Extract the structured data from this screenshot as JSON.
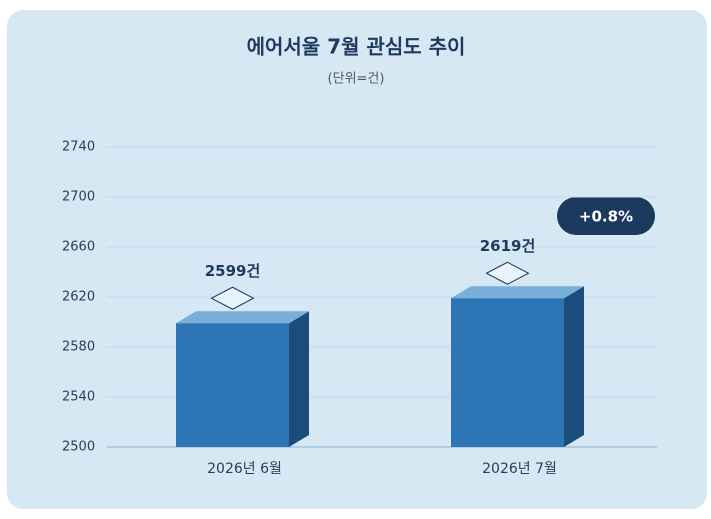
{
  "chart_data": {
    "type": "bar3d",
    "title": "에어서울 7월 관심도 추이",
    "subtitle": "(단위=건)",
    "categories": [
      "2026년 6월",
      "2026년 7월"
    ],
    "values": [
      2599,
      2619
    ],
    "value_labels": [
      "2599건",
      "2619건"
    ],
    "color": "#2e75b6",
    "ylim": [
      2500,
      2740
    ],
    "yticks": [
      2500,
      2540,
      2580,
      2620,
      2660,
      2700,
      2740
    ],
    "grid": true,
    "annotation": "+0.8%"
  }
}
